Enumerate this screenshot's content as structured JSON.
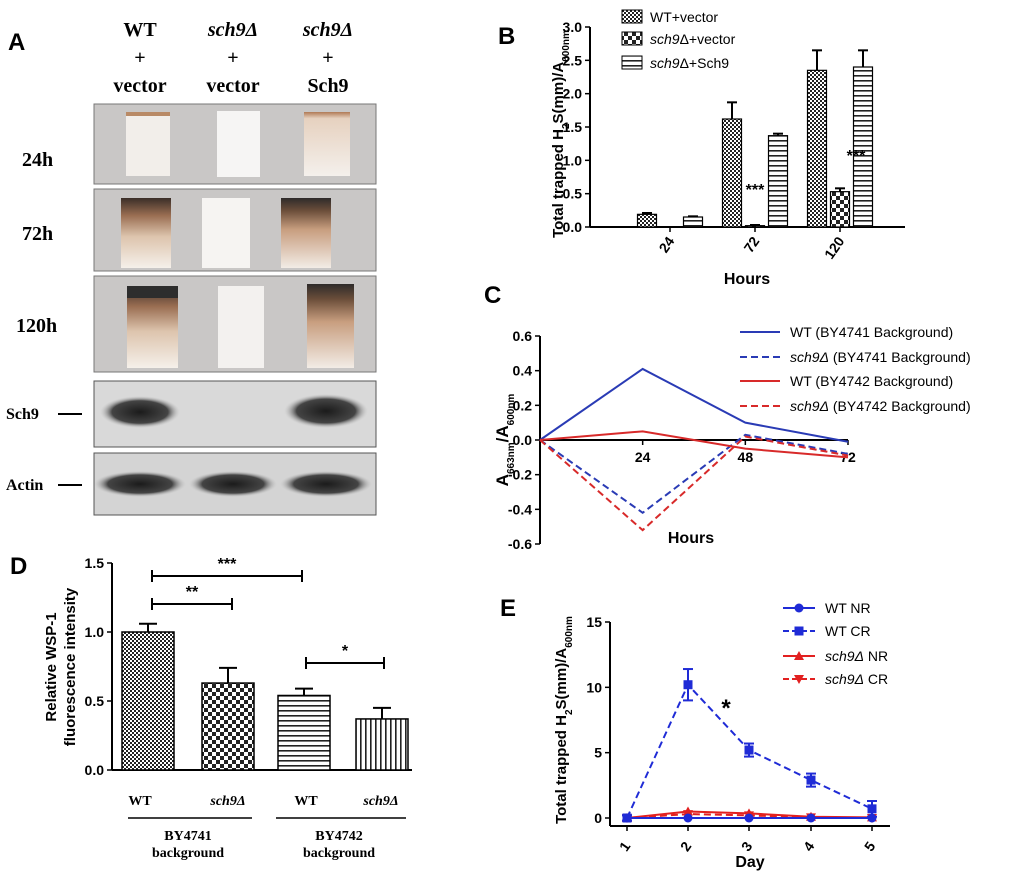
{
  "panels": {
    "A": {
      "letter": "A",
      "columns": [
        {
          "l1": "WT",
          "l2": "+",
          "l3": "vector"
        },
        {
          "l1": "sch9Δ",
          "l2": "+",
          "l3": "vector"
        },
        {
          "l1": "sch9Δ",
          "l2": "+",
          "l3": "Sch9"
        }
      ],
      "rows": [
        "24h",
        "72h",
        "120h"
      ],
      "blots": [
        "Sch9",
        "Actin"
      ]
    },
    "B": {
      "letter": "B"
    },
    "C": {
      "letter": "C"
    },
    "D": {
      "letter": "D",
      "group_labels": [
        "WT",
        "sch9Δ",
        "WT",
        "sch9Δ"
      ],
      "backgrounds": [
        {
          "l1": "BY4741",
          "l2": "background"
        },
        {
          "l1": "BY4742",
          "l2": "background"
        }
      ]
    },
    "E": {
      "letter": "E"
    }
  },
  "chart_data": [
    {
      "id": "B",
      "type": "bar",
      "categories": [
        "24",
        "72",
        "120"
      ],
      "series": [
        {
          "name": "WT+vector",
          "values": [
            0.19,
            1.62,
            2.35
          ],
          "errors": [
            0.02,
            0.25,
            0.3
          ]
        },
        {
          "name": "sch9Δ+vector",
          "values": [
            0.0,
            0.02,
            0.53
          ],
          "errors": [
            0.0,
            0.01,
            0.05
          ]
        },
        {
          "name": "sch9Δ+Sch9",
          "values": [
            0.15,
            1.37,
            2.4
          ],
          "errors": [
            0.01,
            0.03,
            0.25
          ]
        }
      ],
      "annotations": [
        "***",
        "***"
      ],
      "xlabel": "Hours",
      "ylabel": "Total trapped H2S(mm)/A600nm",
      "ylim": [
        0,
        3.0
      ],
      "yticks": [
        "0.0",
        "0.5",
        "1.0",
        "1.5",
        "2.0",
        "2.5",
        "3.0"
      ]
    },
    {
      "id": "C",
      "type": "line",
      "x": [
        0,
        24,
        48,
        72
      ],
      "xticklabels": [
        "24",
        "48",
        "72"
      ],
      "series": [
        {
          "name": "WT (BY4741 Background)",
          "values": [
            0.0,
            0.41,
            0.1,
            -0.01
          ],
          "color": "#2a3bb5",
          "dash": false
        },
        {
          "name": "sch9Δ (BY4741 Background)",
          "values": [
            0.0,
            -0.42,
            0.03,
            -0.08
          ],
          "color": "#2a3bb5",
          "dash": true
        },
        {
          "name": "WT (BY4742 Background)",
          "values": [
            0.0,
            0.05,
            -0.05,
            -0.1
          ],
          "color": "#d82a2a",
          "dash": false
        },
        {
          "name": "sch9Δ (BY4742 Background)",
          "values": [
            0.0,
            -0.52,
            0.02,
            -0.09
          ],
          "color": "#d82a2a",
          "dash": true
        }
      ],
      "xlabel": "Hours",
      "ylabel": "A663nm/A600nm",
      "ylim": [
        -0.6,
        0.6
      ],
      "yticks": [
        "0.6",
        "0.4",
        "0.2",
        "0.0",
        "-0.2",
        "-0.4",
        "-0.6"
      ]
    },
    {
      "id": "D",
      "type": "bar",
      "categories": [
        "WT",
        "sch9Δ",
        "WT",
        "sch9Δ"
      ],
      "values": [
        1.0,
        0.63,
        0.54,
        0.37
      ],
      "errors": [
        0.06,
        0.11,
        0.05,
        0.08
      ],
      "significance": [
        "**",
        "***",
        "*"
      ],
      "ylabel": "Relative WSP-1 fluorescence intensity",
      "ylim": [
        0,
        1.5
      ],
      "yticks": [
        "0.0",
        "0.5",
        "1.0",
        "1.5"
      ]
    },
    {
      "id": "E",
      "type": "line",
      "x": [
        1,
        2,
        3,
        4,
        5
      ],
      "xticklabels": [
        "1",
        "2",
        "3",
        "4",
        "5"
      ],
      "series": [
        {
          "name": "WT NR",
          "values": [
            0.0,
            0.0,
            0.0,
            0.0,
            0.0
          ],
          "errors": [
            0,
            0,
            0,
            0,
            0
          ],
          "color": "#1f2bd6",
          "dash": false,
          "marker": "circle"
        },
        {
          "name": "WT CR",
          "values": [
            0.0,
            10.2,
            5.2,
            2.9,
            0.7
          ],
          "errors": [
            0.2,
            1.2,
            0.5,
            0.5,
            0.6
          ],
          "color": "#1f2bd6",
          "dash": true,
          "marker": "square"
        },
        {
          "name": "sch9Δ NR",
          "values": [
            0.0,
            0.5,
            0.35,
            0.1,
            0.05
          ],
          "errors": [
            0,
            0,
            0,
            0,
            0
          ],
          "color": "#e22020",
          "dash": false,
          "marker": "triangle"
        },
        {
          "name": "sch9Δ CR",
          "values": [
            0.0,
            0.3,
            0.2,
            0.05,
            0.0
          ],
          "errors": [
            0,
            0,
            0,
            0,
            0
          ],
          "color": "#e22020",
          "dash": true,
          "marker": "triangle-down"
        }
      ],
      "annotations": [
        "*"
      ],
      "xlabel": "Day",
      "ylabel": "Total trapped H2S(mm)/A600nm",
      "ylim": [
        0,
        15
      ],
      "yticks": [
        "0",
        "5",
        "10",
        "15"
      ]
    }
  ]
}
